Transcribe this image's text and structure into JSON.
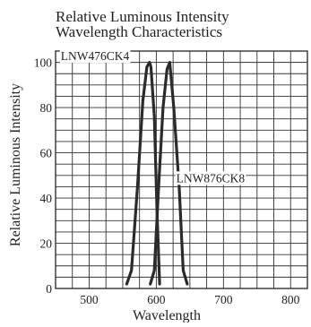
{
  "chart_data": {
    "type": "line",
    "title_lines": [
      "Relative Luminous Intensity",
      "Wavelength Characteristics"
    ],
    "xlabel": "Wavelength",
    "ylabel": "Relative Luminous Intensity",
    "xlim": [
      450,
      825
    ],
    "ylim": [
      0,
      105
    ],
    "x_ticks": [
      500,
      600,
      700,
      800
    ],
    "x_tick_labels": [
      "500",
      "600",
      "700",
      "800"
    ],
    "x_gridlines": [
      450,
      475,
      500,
      525,
      550,
      575,
      600,
      625,
      650,
      675,
      700,
      725,
      750,
      775,
      800,
      825
    ],
    "y_ticks": [
      0,
      20,
      40,
      60,
      80,
      100
    ],
    "y_tick_labels": [
      "0",
      "20",
      "40",
      "60",
      "80",
      "100"
    ],
    "y_gridlines": [
      0,
      5,
      10,
      15,
      20,
      25,
      30,
      35,
      40,
      45,
      50,
      55,
      60,
      65,
      70,
      75,
      80,
      85,
      90,
      95,
      100,
      105
    ],
    "grid": true,
    "colors": {
      "curve": "#2b2b2b",
      "grid": "#333333",
      "background": "#ffffff"
    },
    "series": [
      {
        "name": "LNW476CK4",
        "x": [
          556,
          563,
          572,
          580,
          586,
          590,
          592,
          597,
          601,
          605
        ],
        "y": [
          2,
          8,
          45,
          83,
          98,
          100,
          98,
          76,
          35,
          2
        ]
      },
      {
        "name": "LNW876CK8",
        "x": [
          591,
          597,
          604,
          610,
          616,
          620,
          626,
          634,
          640,
          646
        ],
        "y": [
          2,
          8,
          48,
          80,
          97,
          100,
          80,
          45,
          8,
          2
        ]
      }
    ],
    "annotations": [
      {
        "series": "LNW476CK4",
        "text": "LNW476CK4",
        "at": [
          455,
          103
        ]
      },
      {
        "series": "LNW876CK8",
        "text": "LNW876CK8",
        "at": [
          627,
          49
        ]
      }
    ]
  }
}
